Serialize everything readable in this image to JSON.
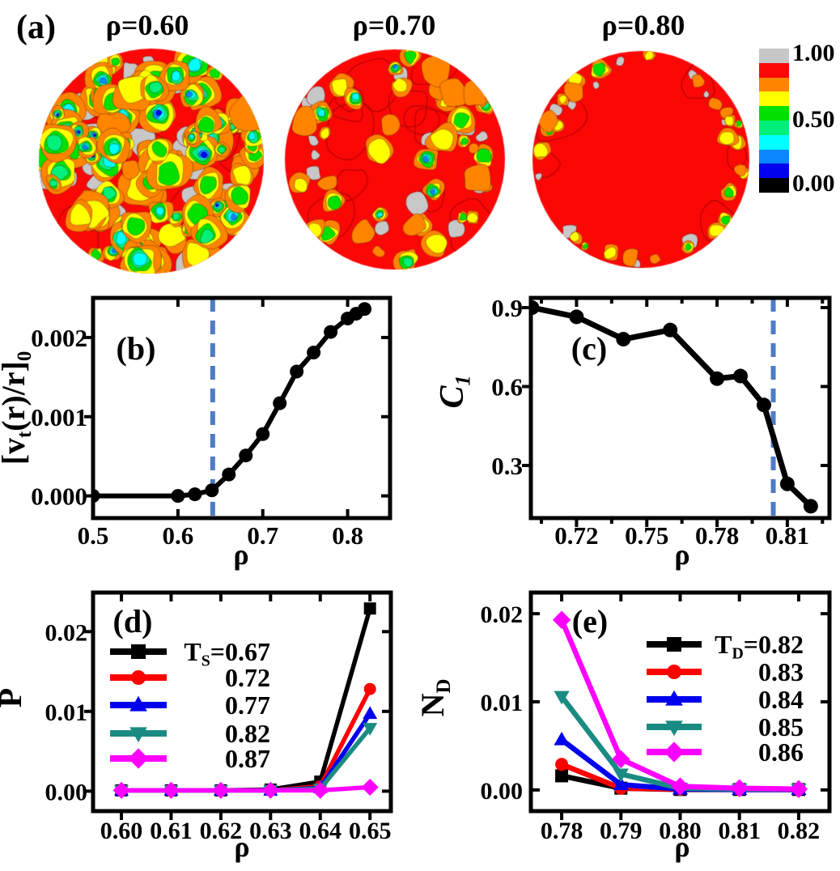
{
  "panel_a": {
    "label": "(a)",
    "titles": [
      "ρ=0.60",
      "ρ=0.70",
      "ρ=0.80"
    ],
    "colorbar": {
      "labels": [
        "1.00",
        "0.50",
        "0.00"
      ],
      "colors_top_to_bottom": [
        "#c7c7c7",
        "#fb0806",
        "#ff8400",
        "#ffff00",
        "#00e100",
        "#00f07c",
        "#00ffff",
        "#0a86ff",
        "#0202f0",
        "#000000"
      ]
    }
  },
  "chart_data": [
    {
      "id": "b",
      "type": "line",
      "panel_label": "(b)",
      "xlabel": "ρ",
      "ylabel": "[v_{t}(r)/r]_{0}",
      "xlim": [
        0.5,
        0.85
      ],
      "ylim": [
        -0.00028,
        0.0025
      ],
      "xticks": [
        0.5,
        0.6,
        0.7,
        0.8
      ],
      "xtick_labels": [
        "0.5",
        "0.6",
        "0.7",
        "0.8"
      ],
      "yticks": [
        0,
        0.001,
        0.002
      ],
      "ytick_labels": [
        "0.000",
        "0.001",
        "0.002"
      ],
      "grid": false,
      "legend_position": null,
      "threshold_x": 0.641,
      "threshold_color": "#4e7cc6",
      "series": [
        {
          "name": "vt_over_r",
          "color": "#000000",
          "marker": "circle",
          "x": [
            0.5,
            0.6,
            0.62,
            0.64,
            0.66,
            0.68,
            0.7,
            0.72,
            0.74,
            0.76,
            0.78,
            0.8,
            0.81,
            0.82
          ],
          "y": [
            0.0,
            0.0,
            2e-05,
            7e-05,
            0.00027,
            0.00051,
            0.00078,
            0.00117,
            0.00157,
            0.00181,
            0.00207,
            0.00224,
            0.0023,
            0.00236
          ]
        }
      ]
    },
    {
      "id": "c",
      "type": "line",
      "panel_label": "(c)",
      "xlabel": "ρ",
      "ylabel": "C_{1}",
      "xlim": [
        0.7005,
        0.828
      ],
      "ylim": [
        0.1,
        0.937
      ],
      "xticks": [
        0.72,
        0.75,
        0.78,
        0.81
      ],
      "xtick_labels": [
        "0.72",
        "0.75",
        "0.78",
        "0.81"
      ],
      "minor_xticks": [
        0.705,
        0.735,
        0.765,
        0.795,
        0.825
      ],
      "yticks": [
        0.3,
        0.6,
        0.9
      ],
      "ytick_labels": [
        "0.3",
        "0.6",
        "0.9"
      ],
      "grid": false,
      "legend_position": null,
      "threshold_x": 0.804,
      "threshold_color": "#4e7cc6",
      "series": [
        {
          "name": "C1",
          "color": "#000000",
          "marker": "circle",
          "x": [
            0.701,
            0.72,
            0.74,
            0.76,
            0.78,
            0.79,
            0.8,
            0.81,
            0.82
          ],
          "y": [
            0.9,
            0.865,
            0.78,
            0.815,
            0.63,
            0.64,
            0.53,
            0.23,
            0.145
          ]
        }
      ]
    },
    {
      "id": "d",
      "type": "line",
      "panel_label": "(d)",
      "xlabel": "ρ",
      "ylabel": "P",
      "xlim": [
        0.5943,
        0.6542
      ],
      "ylim": [
        -0.0025,
        0.0249
      ],
      "xticks": [
        0.6,
        0.61,
        0.62,
        0.63,
        0.64,
        0.65
      ],
      "xtick_labels": [
        "0.60",
        "0.61",
        "0.62",
        "0.63",
        "0.64",
        "0.65"
      ],
      "yticks": [
        0,
        0.01,
        0.02
      ],
      "ytick_labels": [
        "0.00",
        "0.01",
        "0.02"
      ],
      "grid": false,
      "legend_position": "inside-left",
      "series": [
        {
          "label": "T_{S}=0.67",
          "color": "#000000",
          "marker": "square",
          "x": [
            0.6,
            0.61,
            0.62,
            0.63,
            0.64,
            0.65
          ],
          "y": [
            0.0001,
            0.0001,
            0.0001,
            0.0002,
            0.0012,
            0.0229
          ]
        },
        {
          "label": "0.72",
          "color": "#fe0000",
          "marker": "circle",
          "x": [
            0.6,
            0.61,
            0.62,
            0.63,
            0.64,
            0.65
          ],
          "y": [
            0.0001,
            0.0001,
            0.0001,
            0.0001,
            0.0006,
            0.0128
          ]
        },
        {
          "label": "0.77",
          "color": "#0000ee",
          "marker": "triangle-up",
          "x": [
            0.6,
            0.61,
            0.62,
            0.63,
            0.64,
            0.65
          ],
          "y": [
            0.0001,
            0.0001,
            0.0001,
            0.0001,
            0.0004,
            0.0097
          ]
        },
        {
          "label": "0.82",
          "color": "#1a8b83",
          "marker": "triangle-down",
          "x": [
            0.6,
            0.61,
            0.62,
            0.63,
            0.64,
            0.65
          ],
          "y": [
            0.0001,
            0.0001,
            0.0001,
            0.0001,
            0.0003,
            0.0079
          ]
        },
        {
          "label": "0.87",
          "color": "#ff00ff",
          "marker": "diamond",
          "x": [
            0.6,
            0.61,
            0.62,
            0.63,
            0.64,
            0.65
          ],
          "y": [
            0.0001,
            0.0001,
            0.0001,
            0.0001,
            0.0001,
            0.0005
          ]
        }
      ]
    },
    {
      "id": "e",
      "type": "line",
      "panel_label": "(e)",
      "xlabel": "ρ",
      "ylabel": "N_{D}",
      "xlim": [
        0.7748,
        0.8252
      ],
      "ylim": [
        -0.0024,
        0.0224
      ],
      "xticks": [
        0.78,
        0.79,
        0.8,
        0.81,
        0.82
      ],
      "xtick_labels": [
        "0.78",
        "0.79",
        "0.80",
        "0.81",
        "0.82"
      ],
      "yticks": [
        0,
        0.01,
        0.02
      ],
      "ytick_labels": [
        "0.00",
        "0.01",
        "0.02"
      ],
      "grid": false,
      "legend_position": "inside-right",
      "series": [
        {
          "label": "T_{D}=0.82",
          "color": "#000000",
          "marker": "square",
          "x": [
            0.78,
            0.79,
            0.8,
            0.81,
            0.82
          ],
          "y": [
            0.0016,
            0.0002,
            5e-05,
            5e-05,
            5e-05
          ]
        },
        {
          "label": "0.83",
          "color": "#fe0000",
          "marker": "circle",
          "x": [
            0.78,
            0.79,
            0.8,
            0.81,
            0.82
          ],
          "y": [
            0.0029,
            0.0002,
            8e-05,
            5e-05,
            5e-05
          ]
        },
        {
          "label": "0.84",
          "color": "#0000ee",
          "marker": "triangle-up",
          "x": [
            0.78,
            0.79,
            0.8,
            0.81,
            0.82
          ],
          "y": [
            0.0057,
            0.0006,
            0.0001,
            5e-05,
            5e-05
          ]
        },
        {
          "label": "0.85",
          "color": "#1a8b83",
          "marker": "triangle-down",
          "x": [
            0.78,
            0.79,
            0.8,
            0.81,
            0.82
          ],
          "y": [
            0.0106,
            0.0018,
            0.0002,
            0.0001,
            0.0001
          ]
        },
        {
          "label": "0.86",
          "color": "#ff00ff",
          "marker": "diamond",
          "x": [
            0.78,
            0.79,
            0.8,
            0.81,
            0.82
          ],
          "y": [
            0.0193,
            0.0035,
            0.0004,
            0.0002,
            0.0001
          ]
        }
      ]
    }
  ]
}
